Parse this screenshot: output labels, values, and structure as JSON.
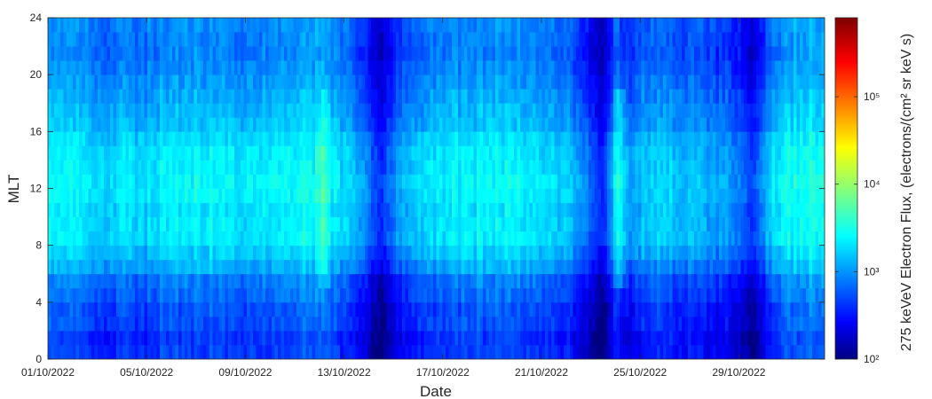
{
  "chart_data": {
    "type": "heatmap",
    "title": "",
    "xlabel": "Date",
    "ylabel": "MLT",
    "x_range": [
      "01/10/2022",
      "02/11/2022"
    ],
    "x_ticks": [
      "01/10/2022",
      "05/10/2022",
      "09/10/2022",
      "13/10/2022",
      "17/10/2022",
      "21/10/2022",
      "25/10/2022",
      "29/10/2022"
    ],
    "ylim": [
      0,
      24
    ],
    "y_ticks": [
      0,
      4,
      8,
      12,
      16,
      20,
      24
    ],
    "colorbar": {
      "label": "275 keVeV Electron Flux, (electrons/(cm² sr keV s)",
      "scale": "log",
      "range": [
        100,
        800000
      ],
      "ticks": [
        {
          "value": 100,
          "label": "10²"
        },
        {
          "value": 1000,
          "label": "10³"
        },
        {
          "value": 10000,
          "label": "10⁴"
        },
        {
          "value": 100000,
          "label": "10⁵"
        }
      ],
      "colormap": "jet"
    },
    "mlt_bins": 24,
    "mlt_profile_log10_flux": [
      2.65,
      2.62,
      2.72,
      2.72,
      2.82,
      2.88,
      3.08,
      3.2,
      3.32,
      3.32,
      3.3,
      3.36,
      3.38,
      3.34,
      3.32,
      3.26,
      3.16,
      3.12,
      3.06,
      3.0,
      2.95,
      2.9,
      2.92,
      2.95
    ],
    "daily_offset_log10_flux": [
      {
        "date": "01/10/2022",
        "offset": 0.12
      },
      {
        "date": "02/10/2022",
        "offset": 0.08
      },
      {
        "date": "03/10/2022",
        "offset": -0.06
      },
      {
        "date": "04/10/2022",
        "offset": 0.02
      },
      {
        "date": "05/10/2022",
        "offset": 0.0
      },
      {
        "date": "06/10/2022",
        "offset": 0.1
      },
      {
        "date": "07/10/2022",
        "offset": 0.12
      },
      {
        "date": "08/10/2022",
        "offset": 0.08
      },
      {
        "date": "09/10/2022",
        "offset": 0.05
      },
      {
        "date": "10/10/2022",
        "offset": 0.06
      },
      {
        "date": "11/10/2022",
        "offset": 0.12
      },
      {
        "date": "12/10/2022",
        "offset": 0.2
      },
      {
        "date": "13/10/2022",
        "offset": -0.05
      },
      {
        "date": "14/10/2022",
        "offset": -0.2
      },
      {
        "date": "15/10/2022",
        "offset": -0.15
      },
      {
        "date": "16/10/2022",
        "offset": -0.1
      },
      {
        "date": "17/10/2022",
        "offset": 0.05
      },
      {
        "date": "18/10/2022",
        "offset": 0.08
      },
      {
        "date": "19/10/2022",
        "offset": 0.1
      },
      {
        "date": "20/10/2022",
        "offset": 0.1
      },
      {
        "date": "21/10/2022",
        "offset": 0.02
      },
      {
        "date": "22/10/2022",
        "offset": -0.1
      },
      {
        "date": "23/10/2022",
        "offset": -0.28
      },
      {
        "date": "24/10/2022",
        "offset": 0.2
      },
      {
        "date": "25/10/2022",
        "offset": -0.02
      },
      {
        "date": "26/10/2022",
        "offset": -0.05
      },
      {
        "date": "27/10/2022",
        "offset": -0.12
      },
      {
        "date": "28/10/2022",
        "offset": -0.22
      },
      {
        "date": "29/10/2022",
        "offset": -0.25
      },
      {
        "date": "30/10/2022",
        "offset": -0.12
      },
      {
        "date": "31/10/2022",
        "offset": 0.15
      },
      {
        "date": "01/11/2022",
        "offset": 0.22
      }
    ],
    "dropouts": [
      {
        "date": "14/10/2022",
        "depth_log10": 0.55
      },
      {
        "date": "23/10/2022",
        "depth_log10": 0.6
      },
      {
        "date": "24/10/2022",
        "depth_log10": 0.35
      },
      {
        "date": "29/10/2022",
        "depth_log10": 0.4
      }
    ],
    "enhancements": [
      {
        "date": "24/10/2022",
        "boost_log10": 0.35
      },
      {
        "date": "12/10/2022",
        "boost_log10": 0.2
      }
    ]
  }
}
